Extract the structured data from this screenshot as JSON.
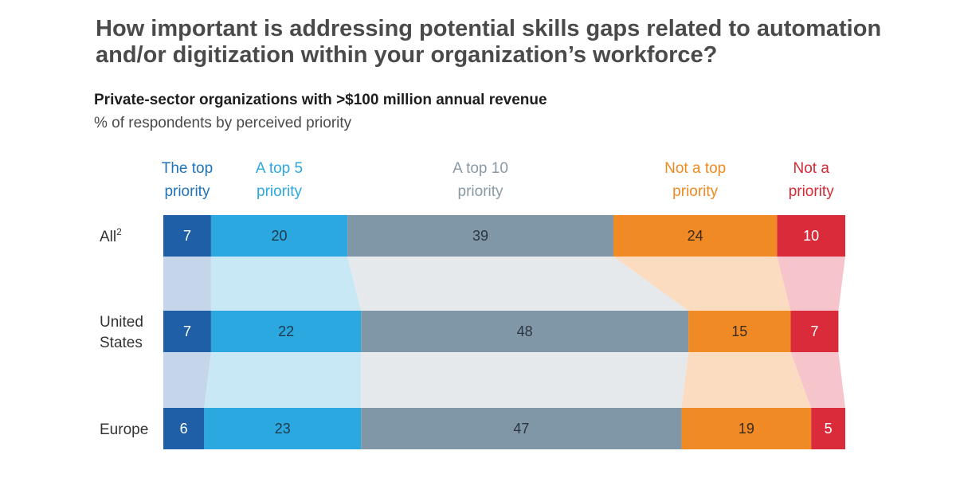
{
  "title": "How important is addressing potential skills gaps related to automation and/or digitization within your organization’s workforce?",
  "subtitle": "Private-sector organizations with >$100 million annual revenue",
  "unit": "% of respondents by perceived priority",
  "chart_data": {
    "type": "bar",
    "orientation": "horizontal",
    "stacked": true,
    "normalized": true,
    "categories": [
      "All",
      "United States",
      "Europe"
    ],
    "category_labels": [
      [
        "All",
        "2"
      ],
      [
        "United",
        "States"
      ],
      [
        "Europe"
      ]
    ],
    "series": [
      {
        "name": "The top priority",
        "label_lines": [
          "The top",
          "priority"
        ],
        "color": "#1f5fa8",
        "header_color": "#1f73b8",
        "band_color": "#c5d6ea",
        "value_color": "#ffffff",
        "values": [
          7,
          7,
          6
        ]
      },
      {
        "name": "A top 5 priority",
        "label_lines": [
          "A top 5",
          "priority"
        ],
        "color": "#2ca8e0",
        "header_color": "#2ca8e0",
        "band_color": "#c8e8f5",
        "value_color": "#1e3a4a",
        "values": [
          20,
          22,
          23
        ]
      },
      {
        "name": "A top 10 priority",
        "label_lines": [
          "A top 10",
          "priority"
        ],
        "color": "#7f97a6",
        "header_color": "#8a99a4",
        "band_color": "#e6e9ec",
        "value_color": "#2a3640",
        "values": [
          39,
          48,
          47
        ]
      },
      {
        "name": "Not a top priority",
        "label_lines": [
          "Not a top",
          "priority"
        ],
        "color": "#f08a24",
        "header_color": "#ef8a22",
        "band_color": "#fbdcc0",
        "value_color": "#3a2a1a",
        "values": [
          24,
          15,
          19
        ]
      },
      {
        "name": "Not a priority",
        "label_lines": [
          "Not a",
          "priority"
        ],
        "color": "#d92b3a",
        "header_color": "#d62a35",
        "band_color": "#f5c5cb",
        "value_color": "#ffffff",
        "values": [
          10,
          7,
          5
        ]
      }
    ],
    "xlim": [
      0,
      100
    ],
    "legend": "top",
    "grid": false
  }
}
